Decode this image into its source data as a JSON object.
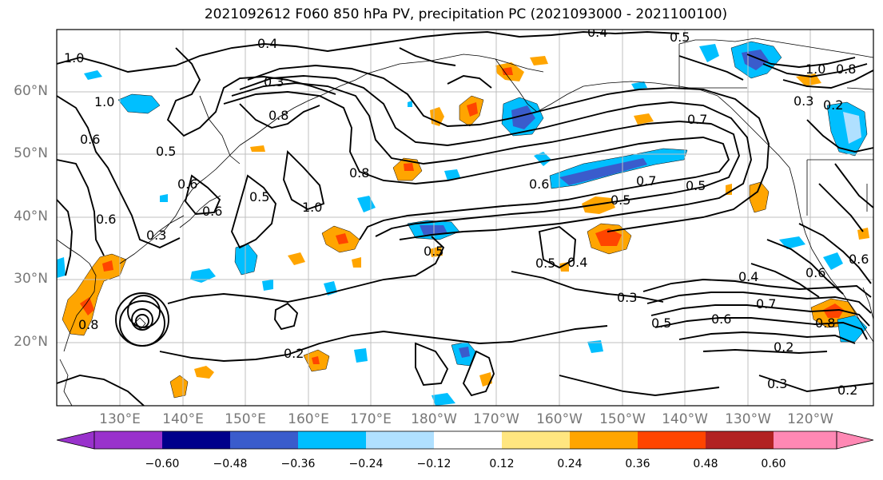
{
  "title": "2021092612 F060 850 hPa PV, precipitation PC (2021093000 - 2021100100)",
  "lat_labels": [
    "60°N",
    "50°N",
    "40°N",
    "30°N",
    "20°N"
  ],
  "lon_labels": [
    "130°E",
    "140°E",
    "150°E",
    "160°E",
    "170°E",
    "180°W",
    "170°W",
    "160°W",
    "150°W",
    "140°W",
    "130°W",
    "120°W"
  ],
  "colorbar": {
    "colors": [
      "#9932cc",
      "#00008b",
      "#3a5ccc",
      "#00bfff",
      "#b0e0ff",
      "#ffffff",
      "#ffe680",
      "#ffa500",
      "#ff4500",
      "#b22222",
      "#ff88b4"
    ],
    "tick_labels": [
      "−0.60",
      "−0.48",
      "−0.36",
      "−0.24",
      "−0.12",
      "0.12",
      "0.24",
      "0.36",
      "0.48",
      "0.60"
    ]
  },
  "contour_labels": [
    "0.4",
    "0.3",
    "1.0",
    "0.5",
    "0.6",
    "0.6",
    "1.0",
    "0.8",
    "0.5",
    "0.4",
    "0.6",
    "0.5",
    "0.5",
    "0.6",
    "1.0",
    "0.8",
    "0.7",
    "0.6",
    "0.7",
    "0.5",
    "0.5",
    "0.4",
    "0.3",
    "0.5",
    "0.6",
    "0.3",
    "0.7",
    "0.8",
    "0.4",
    "0.6",
    "0.2",
    "0.2",
    "0.3",
    "0.2",
    "1.0",
    "0.8",
    "0.3",
    "0.2",
    "0.5",
    "0.8",
    "0.6"
  ]
}
